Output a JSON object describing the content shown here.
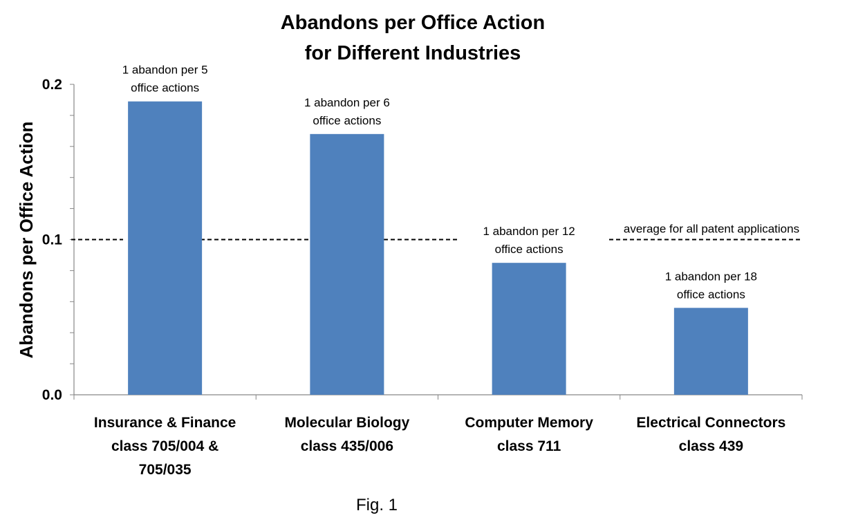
{
  "chart_data": {
    "type": "bar",
    "title": [
      "Abandons per Office Action",
      "for Different Industries"
    ],
    "xlabel": "",
    "ylabel": "Abandons per Office Action",
    "ylim": [
      0,
      0.2
    ],
    "yticks": [
      "0.0",
      "0.1",
      "0.2"
    ],
    "grid": false,
    "legend": "none",
    "bar_color": "#4f81bd",
    "categories": [
      {
        "label_lines": [
          "Insurance & Finance",
          "class 705/004 &",
          "705/035"
        ],
        "value": 0.189,
        "annotation_lines": [
          "1 abandon per 5",
          "office actions"
        ]
      },
      {
        "label_lines": [
          "Molecular Biology",
          "class 435/006"
        ],
        "value": 0.168,
        "annotation_lines": [
          "1 abandon per 6",
          "office actions"
        ]
      },
      {
        "label_lines": [
          "Computer Memory",
          "class 711"
        ],
        "value": 0.085,
        "annotation_lines": [
          "1 abandon per 12",
          "office actions"
        ]
      },
      {
        "label_lines": [
          "Electrical Connectors",
          "class 439"
        ],
        "value": 0.056,
        "annotation_lines": [
          "1 abandon per 18",
          "office actions"
        ]
      }
    ],
    "reference_line": {
      "value": 0.1,
      "style": "dashed",
      "label": "average for all patent applications"
    }
  },
  "caption": "Fig. 1"
}
